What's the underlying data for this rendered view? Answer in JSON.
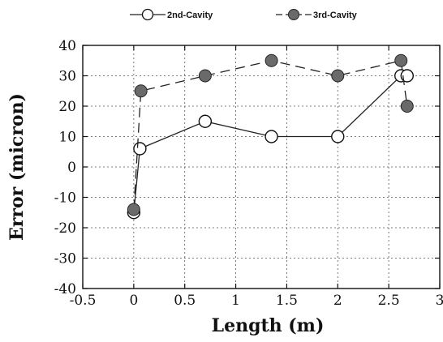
{
  "chart_data": {
    "type": "line",
    "title": "",
    "xlabel": "Length (m)",
    "ylabel": "Error (micron)",
    "xlim": [
      -0.5,
      3
    ],
    "ylim": [
      -40,
      40
    ],
    "xticks": [
      "-0.5",
      "0",
      "0.5",
      "1",
      "1.5",
      "2",
      "2.5",
      "3"
    ],
    "yticks": [
      "40",
      "30",
      "20",
      "10",
      "0",
      "-10",
      "-20",
      "-30",
      "-40"
    ],
    "grid": true,
    "legend_position": "top",
    "series": [
      {
        "name": "2nd-Cavity",
        "marker": "open-circle",
        "line": "solid",
        "color": "#111111",
        "x": [
          0,
          0.06,
          0.7,
          1.35,
          2.0,
          2.62,
          2.68
        ],
        "y": [
          -15,
          6,
          15,
          10,
          10,
          30,
          30
        ]
      },
      {
        "name": "3rd-Cavity",
        "marker": "filled-circle",
        "line": "dashed",
        "color": "#6a6a6a",
        "x": [
          0,
          0.07,
          0.7,
          1.35,
          2.0,
          2.62,
          2.68
        ],
        "y": [
          -14,
          25,
          30,
          35,
          30,
          35,
          20
        ]
      }
    ]
  }
}
